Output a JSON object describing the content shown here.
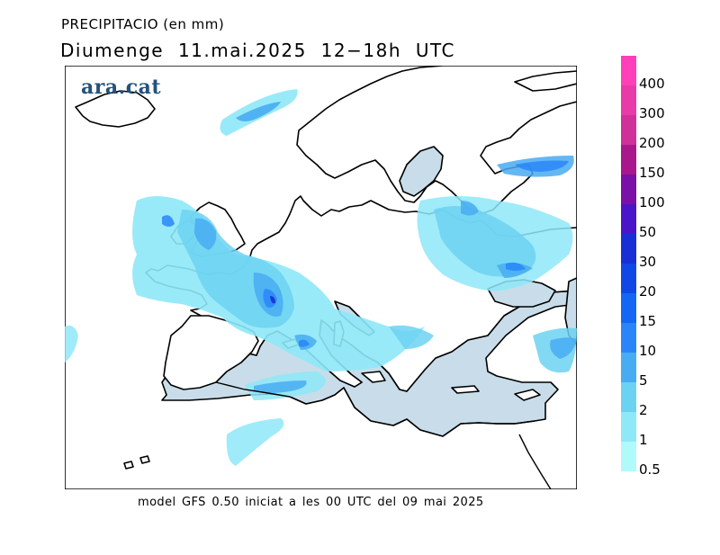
{
  "header": {
    "title": "PRECIPITACIO (en mm)",
    "subtitle": "Diumenge  11.mai.2025  12−18h UTC"
  },
  "logo": {
    "text": "ara.cat"
  },
  "footer": {
    "text": "model GFS 0.50 iniciat a les 00 UTC del 09 mai 2025"
  },
  "legend": {
    "classes": [
      {
        "label": "400",
        "color": "#ff40b8"
      },
      {
        "label": "300",
        "color": "#e83aa8"
      },
      {
        "label": "200",
        "color": "#d0309a"
      },
      {
        "label": "150",
        "color": "#a8188c"
      },
      {
        "label": "100",
        "color": "#7a10a8"
      },
      {
        "label": "50",
        "color": "#4a14c8"
      },
      {
        "label": "30",
        "color": "#1a2ed8"
      },
      {
        "label": "20",
        "color": "#1048e8"
      },
      {
        "label": "15",
        "color": "#1466f4"
      },
      {
        "label": "10",
        "color": "#2a86f8"
      },
      {
        "label": "5",
        "color": "#48acf2"
      },
      {
        "label": "2",
        "color": "#6cd2f2"
      },
      {
        "label": "1",
        "color": "#8ee8f8"
      },
      {
        "label": "0.5",
        "color": "#b0fafc"
      }
    ]
  },
  "map": {
    "sea_color": "#c8dde9",
    "land_color": "#ffffff",
    "coast_color": "#000000"
  }
}
